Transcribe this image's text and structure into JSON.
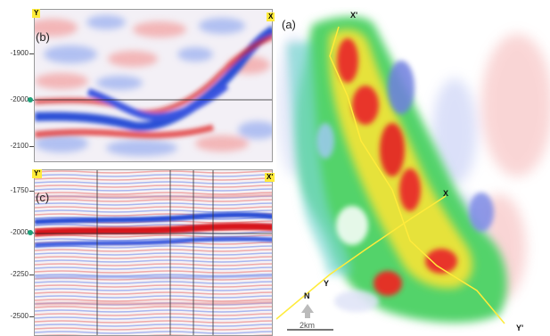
{
  "panel_b": {
    "label": "(b)",
    "left_tag": "Y",
    "right_tag": "X",
    "y_ticks": [
      "-1900",
      "-2000",
      "-2100"
    ]
  },
  "panel_c": {
    "label": "(c)",
    "left_tag": "Y'",
    "right_tag": "X'",
    "y_ticks": [
      "-1750",
      "-2000",
      "-2250",
      "-2500"
    ]
  },
  "panel_a": {
    "label": "(a)",
    "labels": {
      "x_prime": "X'",
      "x": "X",
      "y": "Y",
      "y_prime": "Y'",
      "north": "N"
    },
    "scale_bar": "2km"
  },
  "colors": {
    "positive_amp": "#d7191c",
    "negative_amp": "#2b4fd6",
    "profile_line": "#ffeb3b",
    "marker": "#1fa27a"
  }
}
